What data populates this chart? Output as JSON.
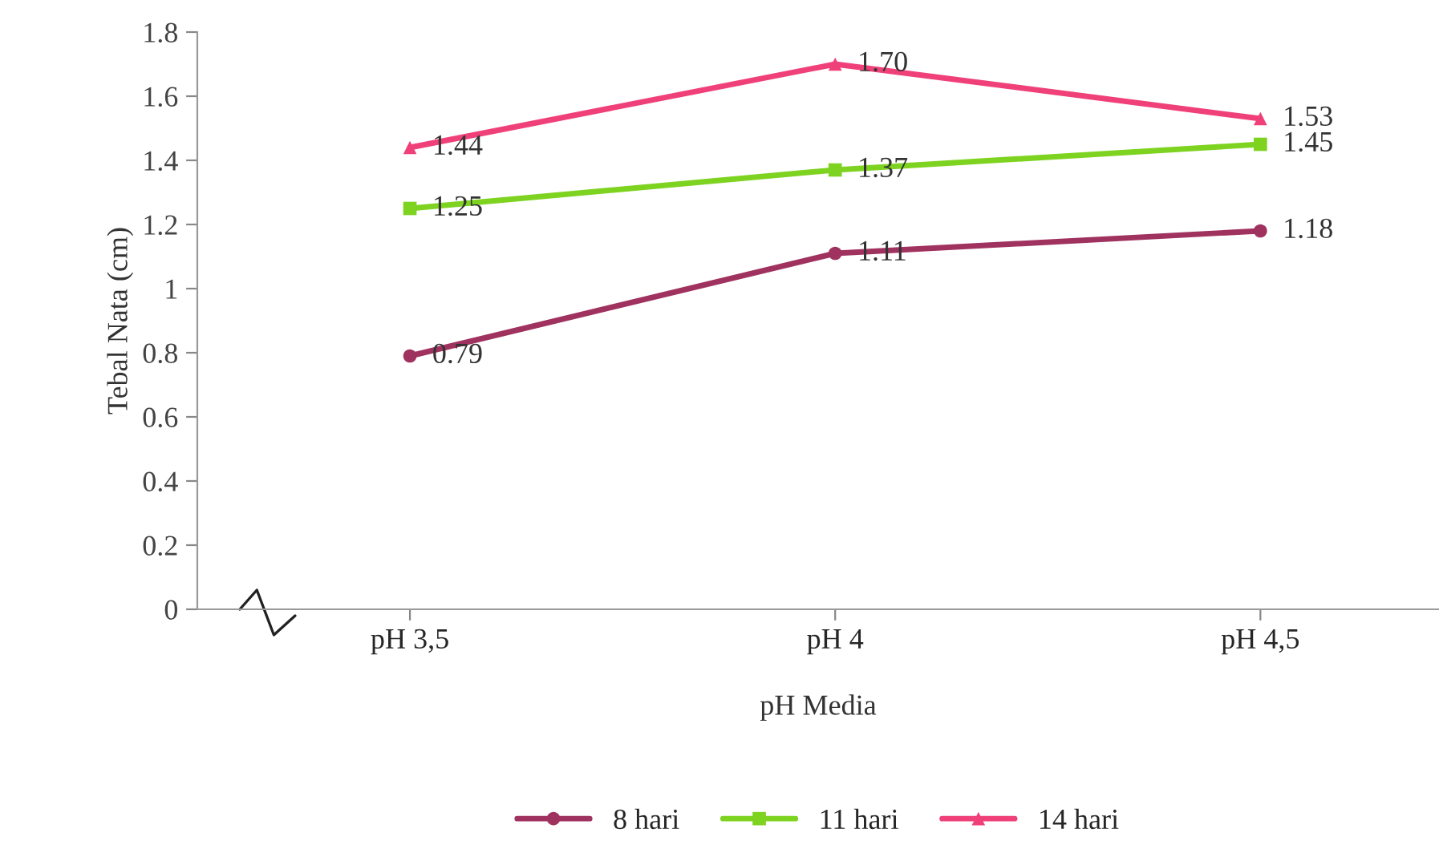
{
  "chart_data": {
    "type": "line",
    "xlabel": "pH Media",
    "ylabel": "Tebal Nata (cm)",
    "categories": [
      "pH 3,5",
      "pH 4",
      "pH 4,5"
    ],
    "ylim": [
      0,
      1.8
    ],
    "yticks": [
      0,
      0.2,
      0.4,
      0.6,
      0.8,
      1,
      1.2,
      1.4,
      1.6,
      1.8
    ],
    "grid": false,
    "legend": "bottom",
    "line_style": "solid",
    "series": [
      {
        "name": "8 hari",
        "color": "#a0325f",
        "marker": "circle",
        "values": [
          0.79,
          1.11,
          1.18
        ],
        "value_labels": [
          "0.79",
          "1.11",
          "1.18"
        ]
      },
      {
        "name": "11 hari",
        "color": "#7ed321",
        "marker": "square",
        "values": [
          1.25,
          1.37,
          1.45
        ],
        "value_labels": [
          "1.25",
          "1.37",
          "1.45"
        ]
      },
      {
        "name": "14 hari",
        "color": "#f0407a",
        "marker": "triangle",
        "values": [
          1.44,
          1.7,
          1.53
        ],
        "value_labels": [
          "1.44",
          "1.70",
          "1.53"
        ]
      }
    ]
  }
}
